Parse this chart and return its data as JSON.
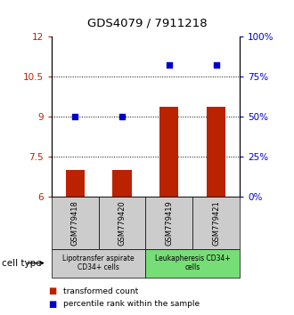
{
  "title": "GDS4079 / 7911218",
  "samples": [
    "GSM779418",
    "GSM779420",
    "GSM779419",
    "GSM779421"
  ],
  "transformed_counts": [
    7.0,
    7.0,
    9.35,
    9.35
  ],
  "percentile_ranks": [
    50,
    50,
    82,
    82
  ],
  "ylim_left": [
    6,
    12
  ],
  "ylim_right": [
    0,
    100
  ],
  "yticks_left": [
    6,
    7.5,
    9,
    10.5,
    12
  ],
  "yticks_right": [
    0,
    25,
    50,
    75,
    100
  ],
  "ytick_labels_left": [
    "6",
    "7.5",
    "9",
    "10.5",
    "12"
  ],
  "ytick_labels_right": [
    "0%",
    "25%",
    "50%",
    "75%",
    "100%"
  ],
  "bar_color": "#bb2200",
  "dot_color": "#0000cc",
  "cell_type_groups": [
    {
      "label": "Lipotransfer aspirate\nCD34+ cells",
      "samples": [
        0,
        1
      ],
      "color": "#cccccc"
    },
    {
      "label": "Leukapheresis CD34+\ncells",
      "samples": [
        2,
        3
      ],
      "color": "#77dd77"
    }
  ],
  "cell_type_label": "cell type",
  "legend_bar_label": "transformed count",
  "legend_dot_label": "percentile rank within the sample",
  "dotted_yticks": [
    7.5,
    9,
    10.5
  ],
  "bar_width": 0.4,
  "background_color": "#ffffff"
}
